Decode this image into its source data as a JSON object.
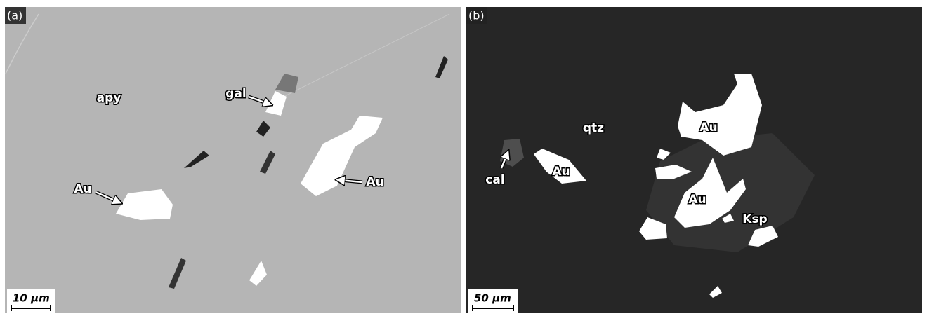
{
  "panels": [
    {
      "label": "(a)",
      "annotations": [
        "apy",
        "gal",
        "Au",
        "Au"
      ],
      "scale_bar": "10 µm"
    },
    {
      "label": "(b)",
      "annotations": [
        "qtz",
        "cal",
        "Au",
        "Au",
        "Au",
        "Ksp"
      ],
      "scale_bar": "50 µm"
    }
  ]
}
